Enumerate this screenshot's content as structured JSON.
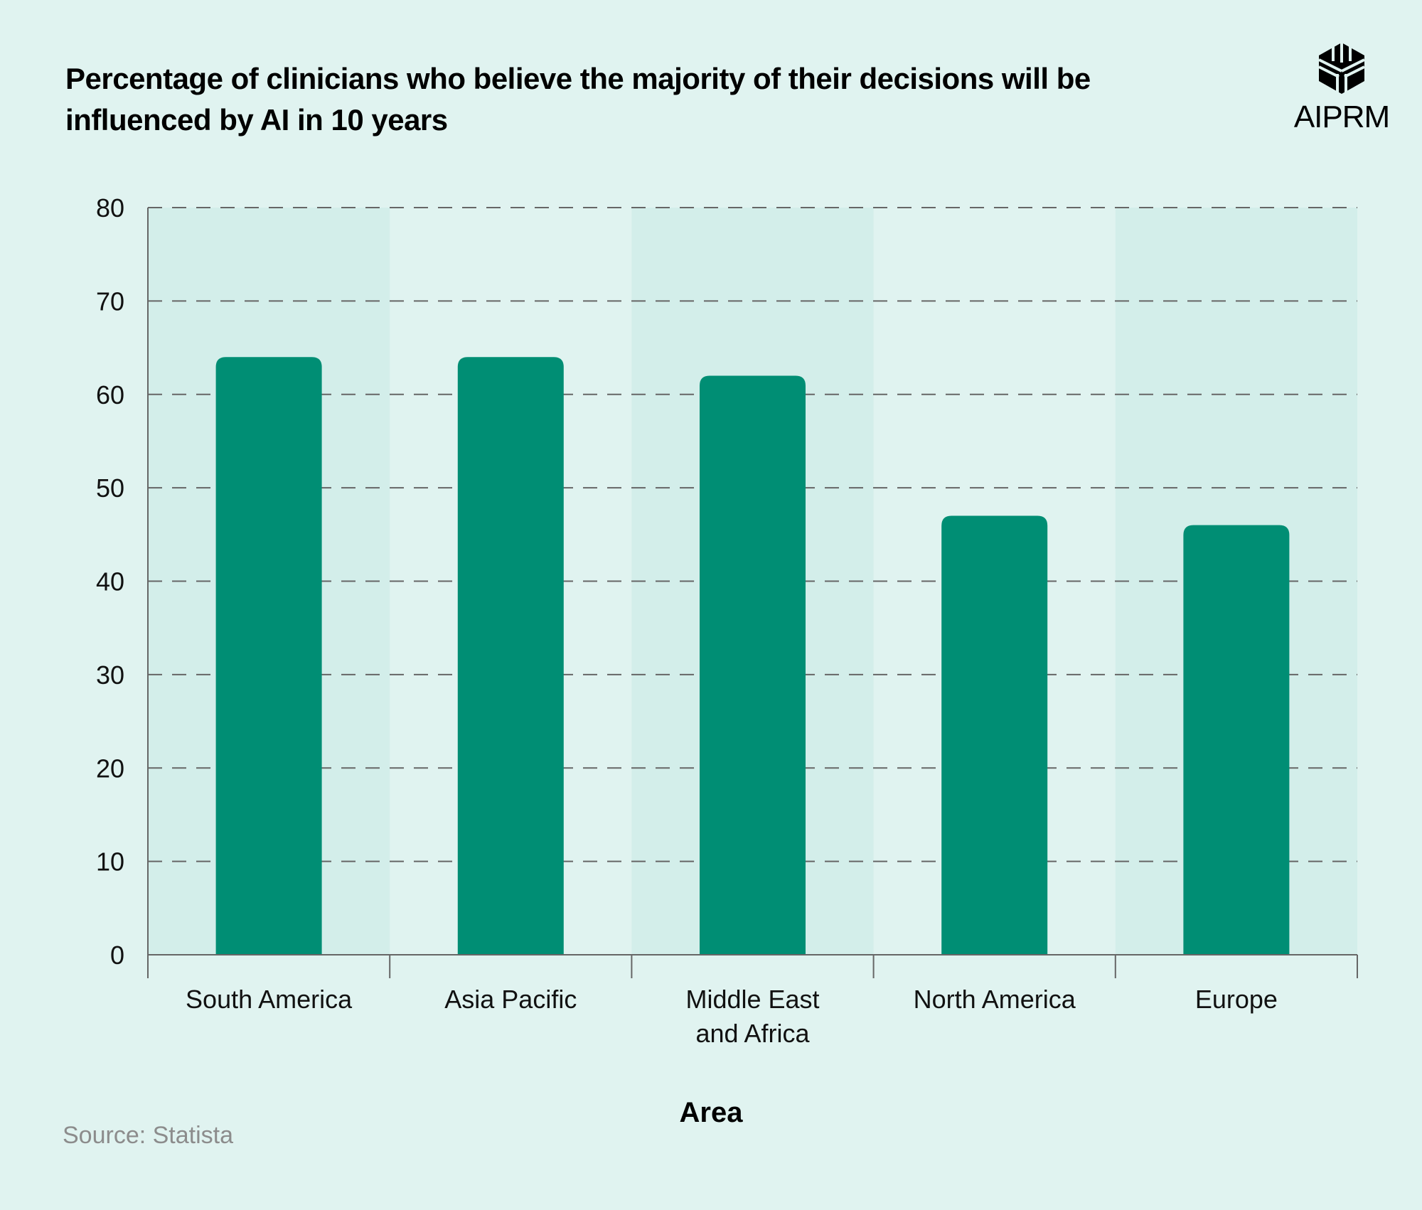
{
  "logo": {
    "text": "AIPRM"
  },
  "source": "Source: Statista",
  "colors": {
    "background": "#e0f3f0",
    "band": "#d3eeea",
    "bar": "#008e74",
    "grid": "#666666"
  },
  "chart_data": {
    "type": "bar",
    "title": "Percentage of clinicians who believe the majority of their decisions will be influenced by AI in 10 years",
    "xlabel": "Area",
    "ylabel": "",
    "categories": [
      "South America",
      "Asia Pacific",
      "Middle East and Africa",
      "North America",
      "Europe"
    ],
    "category_lines": [
      [
        "South America"
      ],
      [
        "Asia Pacific"
      ],
      [
        "Middle East",
        "and Africa"
      ],
      [
        "North America"
      ],
      [
        "Europe"
      ]
    ],
    "values": [
      64,
      64,
      62,
      47,
      46
    ],
    "ylim": [
      0,
      80
    ],
    "yticks": [
      0,
      10,
      20,
      30,
      40,
      50,
      60,
      70,
      80
    ],
    "grid": true,
    "grid_style": "dashed",
    "legend": "none"
  }
}
